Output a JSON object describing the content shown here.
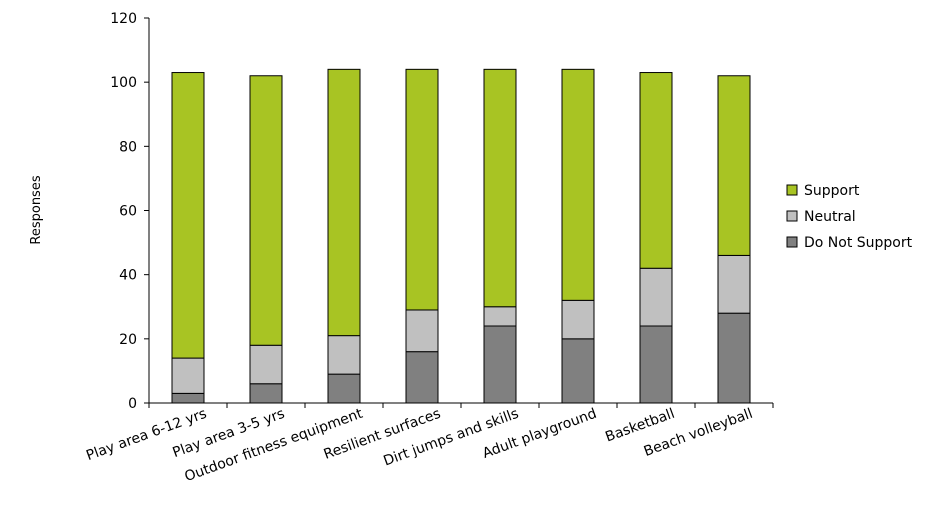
{
  "chart_data": {
    "type": "bar",
    "stacked": true,
    "ylabel": "Responses",
    "ylim": [
      0,
      120
    ],
    "yticks": [
      0,
      20,
      40,
      60,
      80,
      100,
      120
    ],
    "categories": [
      "Play area 6-12 yrs",
      "Play area 3-5 yrs",
      "Outdoor fitness equipment",
      "Resilient surfaces",
      "Dirt jumps and skills",
      "Adult playground",
      "Basketball",
      "Beach volleyball"
    ],
    "series": [
      {
        "name": "Do Not Support",
        "color": "#808080",
        "values": [
          3,
          6,
          9,
          16,
          24,
          20,
          24,
          28
        ]
      },
      {
        "name": "Neutral",
        "color": "#c0c0c0",
        "values": [
          11,
          12,
          12,
          13,
          6,
          12,
          18,
          18
        ]
      },
      {
        "name": "Support",
        "color": "#a8c423",
        "values": [
          89,
          84,
          83,
          75,
          74,
          72,
          61,
          56
        ]
      }
    ],
    "legend": {
      "position": "right",
      "order": [
        "Support",
        "Neutral",
        "Do Not Support"
      ]
    },
    "grid": false
  }
}
